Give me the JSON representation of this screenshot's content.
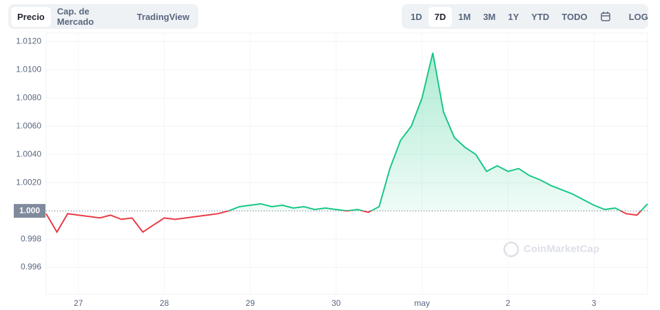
{
  "tabs": {
    "view": [
      "Precio",
      "Cap. de Mercado",
      "TradingView"
    ],
    "range": [
      "1D",
      "7D",
      "1M",
      "3M",
      "1Y",
      "YTD",
      "TODO",
      "LOG"
    ]
  },
  "watermark": "CoinMarketCap",
  "chart_data": {
    "type": "line",
    "categories": [
      null,
      null,
      null,
      "27",
      null,
      null,
      null,
      null,
      null,
      null,
      null,
      "28",
      null,
      null,
      null,
      null,
      null,
      null,
      null,
      "29",
      null,
      null,
      null,
      null,
      null,
      null,
      null,
      "30",
      null,
      null,
      null,
      null,
      null,
      null,
      null,
      "may",
      null,
      null,
      null,
      null,
      null,
      null,
      null,
      "2",
      null,
      null,
      null,
      null,
      null,
      null,
      null,
      "3",
      null,
      null,
      null,
      null,
      null
    ],
    "series": [
      {
        "name": "Precio",
        "color": "#16c784",
        "values": [
          0.9998,
          0.9985,
          0.9998,
          0.9997,
          0.9996,
          0.9995,
          0.9997,
          0.9994,
          0.9995,
          0.9985,
          0.999,
          0.9995,
          0.9994,
          0.9995,
          0.9996,
          0.9997,
          0.9998,
          1.0,
          1.0003,
          1.0004,
          1.0005,
          1.0003,
          1.0004,
          1.0002,
          1.0003,
          1.0001,
          1.0002,
          1.0001,
          1.0,
          1.0001,
          0.9999,
          1.0003,
          1.003,
          1.005,
          1.006,
          1.008,
          1.0112,
          1.007,
          1.0052,
          1.0045,
          1.004,
          1.0028,
          1.0032,
          1.0028,
          1.003,
          1.0025,
          1.0022,
          1.0018,
          1.0015,
          1.0012,
          1.0008,
          1.0004,
          1.0001,
          1.0002,
          0.9998,
          0.9997,
          1.0005
        ]
      }
    ],
    "below_color": "#ea3943",
    "reference": {
      "value": 1.0,
      "label": "1.000"
    },
    "ylim": [
      0.9941,
      1.0126
    ],
    "yticks": [
      {
        "value": 0.996,
        "label": "0.996"
      },
      {
        "value": 0.998,
        "label": "0.998"
      },
      {
        "value": 1.0,
        "label": "1.0000"
      },
      {
        "value": 1.002,
        "label": "1.0020"
      },
      {
        "value": 1.004,
        "label": "1.0040"
      },
      {
        "value": 1.006,
        "label": "1.0060"
      },
      {
        "value": 1.008,
        "label": "1.0080"
      },
      {
        "value": 1.01,
        "label": "1.0100"
      },
      {
        "value": 1.012,
        "label": "1.0120"
      }
    ],
    "grid": true
  }
}
